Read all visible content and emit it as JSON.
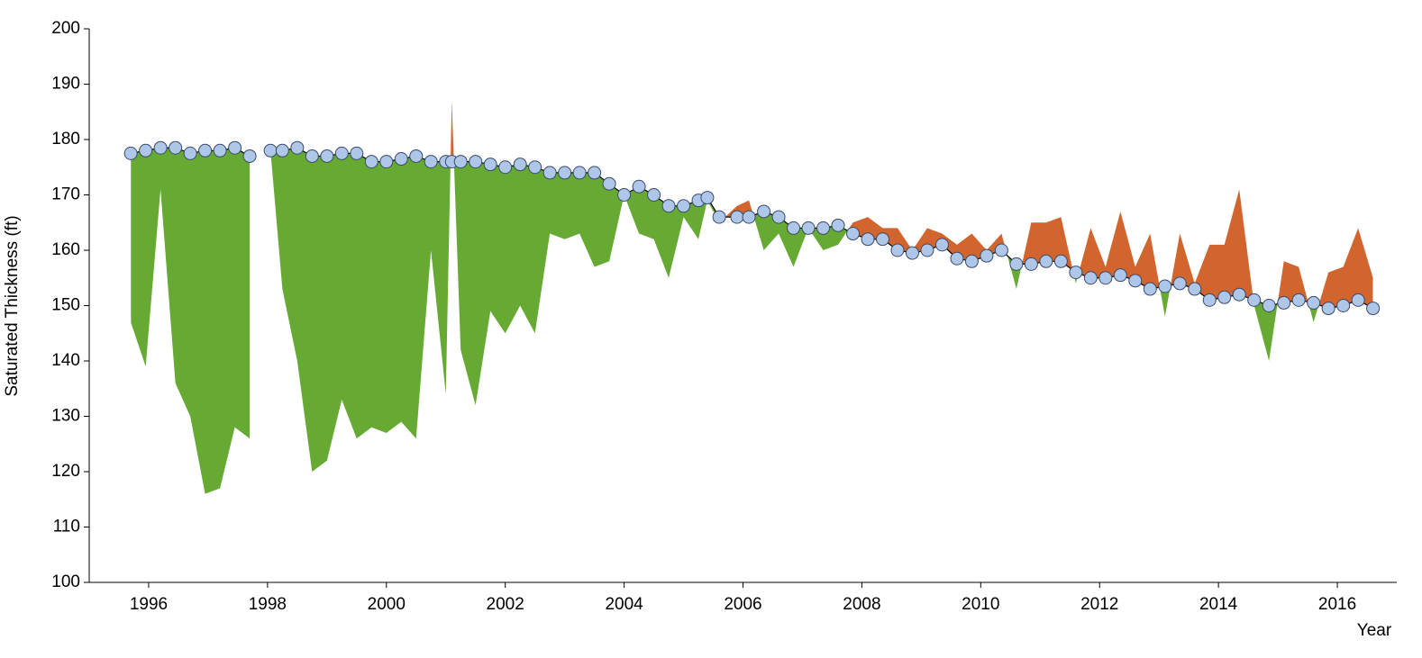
{
  "chart_data": {
    "type": "difference",
    "y_label": "Saturated Thickness (ft)",
    "x_label": "Year",
    "x": [
      1995.7,
      1995.95,
      1996.2,
      1996.45,
      1996.7,
      1996.95,
      1997.2,
      1997.45,
      1997.7,
      1997.9,
      1998.05,
      1998.25,
      1998.5,
      1998.75,
      1999.0,
      1999.25,
      1999.5,
      1999.75,
      2000.0,
      2000.25,
      2000.5,
      2000.75,
      2001.0,
      2001.1,
      2001.25,
      2001.5,
      2001.75,
      2002.0,
      2002.25,
      2002.5,
      2002.75,
      2003.0,
      2003.25,
      2003.5,
      2003.75,
      2004.0,
      2004.25,
      2004.5,
      2004.75,
      2005.0,
      2005.25,
      2005.4,
      2005.6,
      2005.9,
      2006.1,
      2006.35,
      2006.6,
      2006.85,
      2007.1,
      2007.35,
      2007.6,
      2007.85,
      2008.1,
      2008.35,
      2008.6,
      2008.85,
      2009.1,
      2009.35,
      2009.6,
      2009.85,
      2010.1,
      2010.35,
      2010.6,
      2010.85,
      2011.1,
      2011.35,
      2011.6,
      2011.85,
      2012.1,
      2012.35,
      2012.6,
      2012.85,
      2013.1,
      2013.35,
      2013.6,
      2013.85,
      2014.1,
      2014.35,
      2014.6,
      2014.85,
      2015.1,
      2015.35,
      2015.6,
      2015.85,
      2016.1,
      2016.35,
      2016.6
    ],
    "series": [
      {
        "color": "#aec7e8",
        "values": [
          177.5,
          178,
          178.5,
          178.5,
          177.5,
          178,
          178,
          178.5,
          177,
          null,
          178,
          178,
          178.5,
          177,
          177,
          177.5,
          177.5,
          176,
          176,
          176.5,
          177,
          176,
          176,
          176,
          176,
          176,
          175.5,
          175,
          175.5,
          175,
          174,
          174,
          174,
          174,
          172,
          170,
          171.5,
          170,
          168,
          168,
          169,
          169.5,
          166,
          166,
          166,
          167,
          166,
          164,
          164,
          164,
          164.5,
          163,
          162,
          162,
          160,
          159.5,
          160,
          161,
          158.5,
          158,
          159,
          160,
          157.5,
          157.5,
          158,
          158,
          156,
          155,
          155,
          155.5,
          154.5,
          153,
          153.5,
          154,
          153,
          151,
          151.5,
          152,
          151,
          150,
          150.5,
          151,
          150.5,
          149.5,
          150,
          151,
          149.5
        ]
      },
      {
        "values": [
          147,
          139,
          171,
          136,
          130,
          116,
          117,
          128,
          126,
          null,
          178,
          153,
          140,
          120,
          122,
          133,
          126,
          128,
          127,
          129,
          126,
          160,
          134,
          187,
          142,
          132,
          149,
          145,
          150,
          145,
          163,
          162,
          163,
          157,
          158,
          170,
          163,
          162,
          155,
          166,
          162,
          169,
          165,
          168,
          169,
          160,
          163,
          157,
          164,
          160,
          161,
          165,
          166,
          164,
          164,
          160,
          164,
          163,
          161,
          163,
          160,
          163,
          153,
          165,
          165,
          166,
          154,
          164,
          157,
          167,
          157,
          163,
          148,
          163,
          154,
          161,
          161,
          171,
          150,
          140,
          158,
          157,
          147,
          156,
          157,
          164,
          155
        ]
      }
    ],
    "fill_below": "#66aa33",
    "fill_above": "#d2652d",
    "line_color": "#000000",
    "xlim": [
      1995,
      2017
    ],
    "xticks": [
      1996,
      1998,
      2000,
      2002,
      2004,
      2006,
      2008,
      2010,
      2012,
      2014,
      2016
    ],
    "ylim": [
      100,
      200
    ],
    "yticks": [
      100,
      110,
      120,
      130,
      140,
      150,
      160,
      170,
      180,
      190,
      200
    ]
  }
}
